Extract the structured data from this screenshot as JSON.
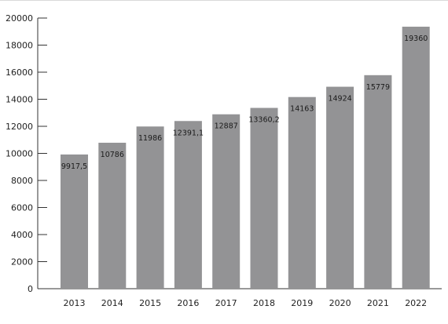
{
  "chart_data": {
    "type": "bar",
    "title": "",
    "xlabel": "",
    "ylabel": "",
    "categories": [
      "2013",
      "2014",
      "2015",
      "2016",
      "2017",
      "2018",
      "2019",
      "2020",
      "2021",
      "2022"
    ],
    "values": [
      9917.5,
      10786,
      11986,
      12391.1,
      12887,
      13360.2,
      14163,
      14924,
      15779,
      19360
    ],
    "data_labels": [
      "9917,5",
      "10786",
      "11986",
      "12391,1",
      "12887",
      "13360,2",
      "14163",
      "14924",
      "15779",
      "19360"
    ],
    "y_ticks": [
      "0",
      "2000",
      "4000",
      "6000",
      "8000",
      "10000",
      "12000",
      "14000",
      "16000",
      "18000",
      "20000"
    ],
    "ylim": [
      0,
      20000
    ],
    "grid": false,
    "legend": "none",
    "bar_color": "#939395",
    "axis_color": "#333333"
  }
}
